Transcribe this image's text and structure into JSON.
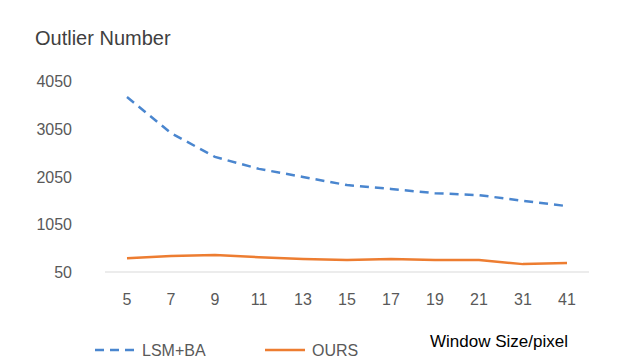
{
  "chart_data": {
    "type": "line",
    "title": "Outlier Number",
    "x_label": "Window Size/pixel",
    "categories": [
      "5",
      "7",
      "9",
      "11",
      "13",
      "15",
      "17",
      "19",
      "21",
      "31",
      "41"
    ],
    "series": [
      {
        "name": "LSM+BA",
        "color": "#4a86cf",
        "line_style": "dashed",
        "values": [
          3715,
          2960,
          2460,
          2210,
          2040,
          1870,
          1790,
          1700,
          1660,
          1540,
          1430
        ]
      },
      {
        "name": "OURS",
        "color": "#ed7d31",
        "line_style": "solid",
        "values": [
          340,
          385,
          405,
          360,
          320,
          300,
          320,
          300,
          300,
          215,
          240
        ]
      }
    ],
    "ylim": [
      50,
      4050
    ],
    "yticks": [
      50,
      1050,
      2050,
      3050,
      4050
    ],
    "grid": false,
    "legend": "bottom"
  }
}
